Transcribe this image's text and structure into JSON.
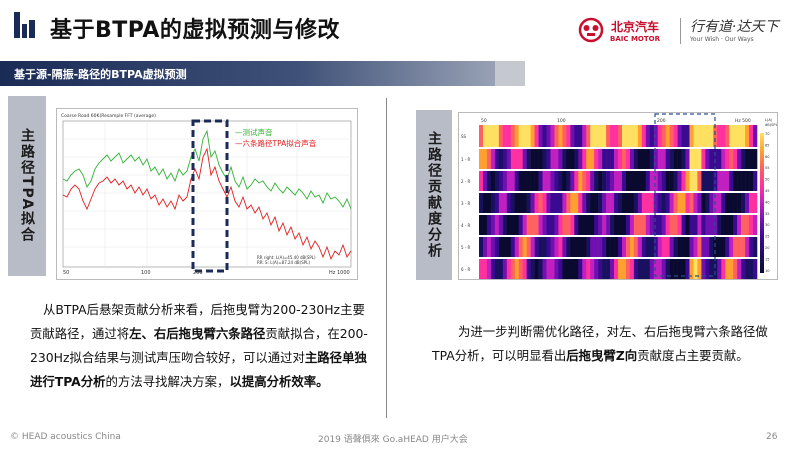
{
  "header": {
    "title": "基于BTPA的虚拟预测与修改",
    "brand_baic_cn": "北京汽车",
    "brand_baic_en": "BAIC MOTOR",
    "brand_slogan_cn": "行有道·达天下",
    "brand_slogan_en": "Your Wish · Our Ways"
  },
  "section": {
    "title": "基于源-隔振-路径的BTPA虚拟预测"
  },
  "left_panel": {
    "side_label": "主路径TPA拟合",
    "chart_title": "Coarse Road 60K(Resample FFT (average)",
    "legend_measured": "—测试声音",
    "legend_fit": "—六条路径TPA拟合声音",
    "legend_small1": "RR right: L(A)=45.40 dB(SPL)",
    "legend_small2": "RR: S: L(A)=87.24 dB(SPL)",
    "x_ticks": [
      "50",
      "100",
      "200",
      "Hz 1000"
    ],
    "paragraph": [
      {
        "t": "从BTPA后悬架贡献分析来看，后拖曳臂为200-230Hz主要贡献路径，通过将",
        "b": false
      },
      {
        "t": "左、右后拖曳臂六条路径",
        "b": true
      },
      {
        "t": "贡献拟合，在200-230Hz拟合结果与测试声压吻合较好，可以通过对",
        "b": false
      },
      {
        "t": "主路径单独进行TPA分析",
        "b": true
      },
      {
        "t": "的方法寻找解决方案，",
        "b": false
      },
      {
        "t": "以提高分析效率。",
        "b": true
      }
    ]
  },
  "right_panel": {
    "side_label": "主路径贡献度分析",
    "x_ticks": [
      "50",
      "100",
      "200",
      "Hz 500"
    ],
    "row_labels": [
      "SS",
      "1 - R",
      "2 - R",
      "3 - R",
      "4 - R",
      "5 - R",
      "6 - R"
    ],
    "scale_labels": [
      "L(A)",
      "dB(SPL)",
      "70",
      "65",
      "60",
      "55",
      "50",
      "45",
      "40",
      "35",
      "30",
      "25",
      "20",
      "15",
      "10"
    ],
    "paragraph": [
      {
        "t": "为进一步判断需优化路径，对左、右后拖曳臂六条路径做TPA分析，可以明显看出",
        "b": false
      },
      {
        "t": "后拖曳臂Z向",
        "b": true
      },
      {
        "t": "贡献度占主要贡献。",
        "b": false
      }
    ]
  },
  "footer": {
    "left": "© HEAD acoustics China",
    "center": "2019 语聲俱來 Go.aHEAD 用户大会",
    "page": "26"
  },
  "colors": {
    "navy": "#1a2b56",
    "measured_line": "#33b233",
    "fit_line": "#e02020",
    "highlight_box": "#1a2b56"
  }
}
